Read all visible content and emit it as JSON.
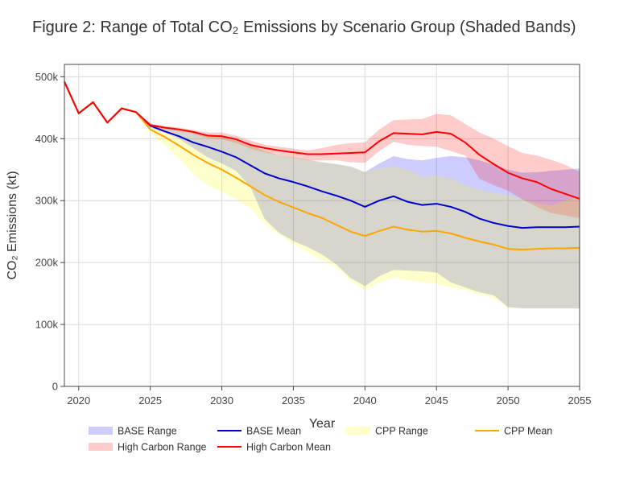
{
  "chart_data": {
    "type": "area",
    "title": "Figure 2: Range of Total CO₂ Emissions by Scenario Group (Shaded Bands)",
    "xlabel": "Year",
    "ylabel": "CO₂ Emissions (kt)",
    "xlim": [
      2019,
      2055
    ],
    "ylim": [
      0,
      520000
    ],
    "xticks": [
      2020,
      2025,
      2030,
      2035,
      2040,
      2045,
      2050,
      2055
    ],
    "yticks": [
      0,
      100000,
      200000,
      300000,
      400000,
      500000
    ],
    "ytick_labels": [
      "0",
      "100k",
      "200k",
      "300k",
      "400k",
      "500k"
    ],
    "grid": true,
    "legend_position": "bottom",
    "x": [
      2019,
      2020,
      2021,
      2022,
      2023,
      2024,
      2025,
      2026,
      2027,
      2028,
      2029,
      2030,
      2031,
      2032,
      2033,
      2034,
      2035,
      2036,
      2037,
      2038,
      2039,
      2040,
      2041,
      2042,
      2043,
      2044,
      2045,
      2046,
      2047,
      2048,
      2049,
      2050,
      2051,
      2052,
      2053,
      2054,
      2055
    ],
    "bands": [
      {
        "name": "BASE Range",
        "color": "#0000ff",
        "opacity": 0.2,
        "upper": [
          492000,
          441000,
          459000,
          426000,
          449000,
          443000,
          423000,
          418000,
          413000,
          410000,
          406000,
          403000,
          398000,
          390000,
          380000,
          373000,
          370000,
          366000,
          362000,
          359000,
          355000,
          346000,
          360000,
          372000,
          367000,
          365000,
          369000,
          372000,
          370000,
          365000,
          358000,
          350000,
          345000,
          346000,
          348000,
          350000,
          352000
        ],
        "lower": [
          492000,
          441000,
          459000,
          426000,
          449000,
          443000,
          418000,
          410000,
          400000,
          385000,
          370000,
          360000,
          348000,
          322000,
          270000,
          248000,
          235000,
          225000,
          213000,
          197000,
          175000,
          162000,
          178000,
          188000,
          187000,
          186000,
          184000,
          168000,
          160000,
          152000,
          147000,
          128000,
          126000,
          126000,
          126000,
          126000,
          126000
        ]
      },
      {
        "name": "High Carbon Range",
        "color": "#ff0000",
        "opacity": 0.2,
        "upper": [
          492000,
          441000,
          459000,
          426000,
          449000,
          443000,
          425000,
          420000,
          418000,
          414000,
          410000,
          410000,
          405000,
          397000,
          390000,
          387000,
          384000,
          381000,
          385000,
          390000,
          393000,
          394000,
          415000,
          430000,
          431000,
          432000,
          440000,
          438000,
          424000,
          410000,
          400000,
          388000,
          377000,
          373000,
          366000,
          358000,
          346000
        ],
        "lower": [
          492000,
          441000,
          459000,
          426000,
          449000,
          443000,
          420000,
          415000,
          412000,
          408000,
          401000,
          399000,
          393000,
          384000,
          378000,
          373000,
          369000,
          365000,
          365000,
          365000,
          362000,
          361000,
          380000,
          395000,
          390000,
          388000,
          387000,
          380000,
          373000,
          335000,
          325000,
          316000,
          302000,
          290000,
          280000,
          276000,
          272000
        ]
      },
      {
        "name": "CPP Range",
        "color": "#ffff00",
        "opacity": 0.2,
        "upper": [
          492000,
          441000,
          459000,
          426000,
          449000,
          443000,
          423000,
          418000,
          413000,
          410000,
          406000,
          403000,
          398000,
          390000,
          380000,
          373000,
          370000,
          366000,
          362000,
          359000,
          355000,
          346000,
          352000,
          355000,
          350000,
          338000,
          340000,
          336000,
          325000,
          318000,
          312000,
          310000,
          302000,
          296000,
          292000,
          300000,
          306000
        ],
        "lower": [
          492000,
          441000,
          459000,
          426000,
          449000,
          443000,
          410000,
          390000,
          368000,
          343000,
          325000,
          314000,
          302000,
          288000,
          262000,
          245000,
          230000,
          217000,
          205000,
          192000,
          170000,
          156000,
          168000,
          176000,
          172000,
          168000,
          166000,
          160000,
          156000,
          148000,
          142000,
          126000,
          126000,
          126000,
          126000,
          126000,
          126000
        ]
      }
    ],
    "series": [
      {
        "name": "BASE Mean",
        "color": "#0000cc",
        "values": [
          492000,
          441000,
          459000,
          426000,
          449000,
          443000,
          421000,
          412000,
          404000,
          394000,
          387000,
          379000,
          370000,
          357000,
          344000,
          336000,
          330000,
          323000,
          315000,
          308000,
          300000,
          290000,
          300000,
          307000,
          298000,
          293000,
          295000,
          290000,
          282000,
          271000,
          264000,
          259000,
          256000,
          257000,
          257000,
          257000,
          258000
        ]
      },
      {
        "name": "CPP Mean",
        "color": "#ffa500",
        "values": [
          492000,
          441000,
          459000,
          426000,
          449000,
          443000,
          415000,
          403000,
          389000,
          374000,
          361000,
          350000,
          337000,
          323000,
          309000,
          298000,
          289000,
          280000,
          272000,
          261000,
          250000,
          243000,
          251000,
          258000,
          253000,
          250000,
          251000,
          247000,
          240000,
          234000,
          229000,
          222000,
          221000,
          222000,
          223000,
          223000,
          224000
        ]
      },
      {
        "name": "High Carbon Mean",
        "color": "#ff0000",
        "values": [
          492000,
          441000,
          459000,
          426000,
          449000,
          443000,
          422000,
          418000,
          415000,
          411000,
          405000,
          404000,
          399000,
          390000,
          385000,
          381000,
          378000,
          375000,
          375000,
          376000,
          377000,
          378000,
          396000,
          409000,
          408000,
          407000,
          411000,
          408000,
          394000,
          374000,
          359000,
          345000,
          336000,
          330000,
          319000,
          311000,
          303000
        ]
      }
    ],
    "legend": [
      {
        "name": "BASE Range",
        "kind": "band",
        "color": "#0000ff"
      },
      {
        "name": "BASE Mean",
        "kind": "line",
        "color": "#0000cc"
      },
      {
        "name": "CPP Range",
        "kind": "band",
        "color": "#ffff00"
      },
      {
        "name": "CPP Mean",
        "kind": "line",
        "color": "#ffa500"
      },
      {
        "name": "High Carbon Range",
        "kind": "band",
        "color": "#ff0000"
      },
      {
        "name": "High Carbon Mean",
        "kind": "line",
        "color": "#ff0000"
      }
    ]
  }
}
